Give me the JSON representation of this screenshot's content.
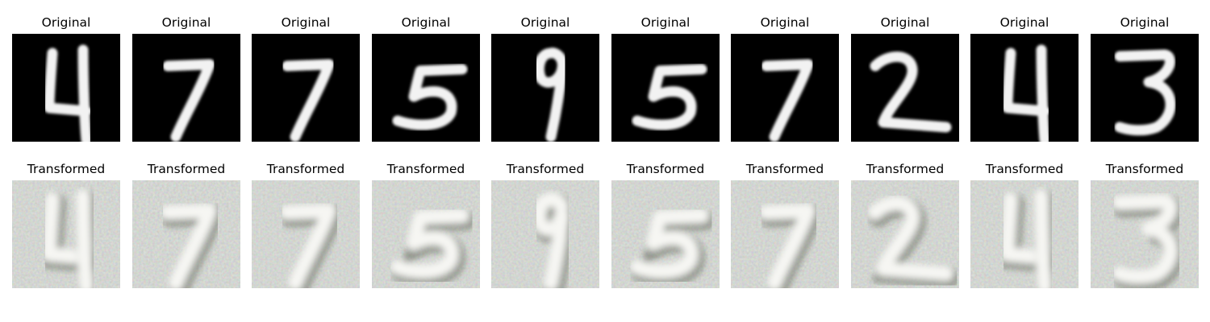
{
  "figure": {
    "rows": [
      {
        "title": "Original",
        "style": "original",
        "digits": [
          "4",
          "7",
          "7",
          "5",
          "9",
          "5",
          "7",
          "2",
          "4",
          "3"
        ]
      },
      {
        "title": "Transformed",
        "style": "transformed",
        "digits": [
          "4",
          "7",
          "7",
          "5",
          "9",
          "5",
          "7",
          "2",
          "4",
          "3"
        ]
      }
    ],
    "colors": {
      "original_background": "#000000",
      "original_stroke": "#f2f2f2",
      "transformed_background": "#c9cfc6",
      "transformed_stroke": "#f6f6f3"
    }
  }
}
